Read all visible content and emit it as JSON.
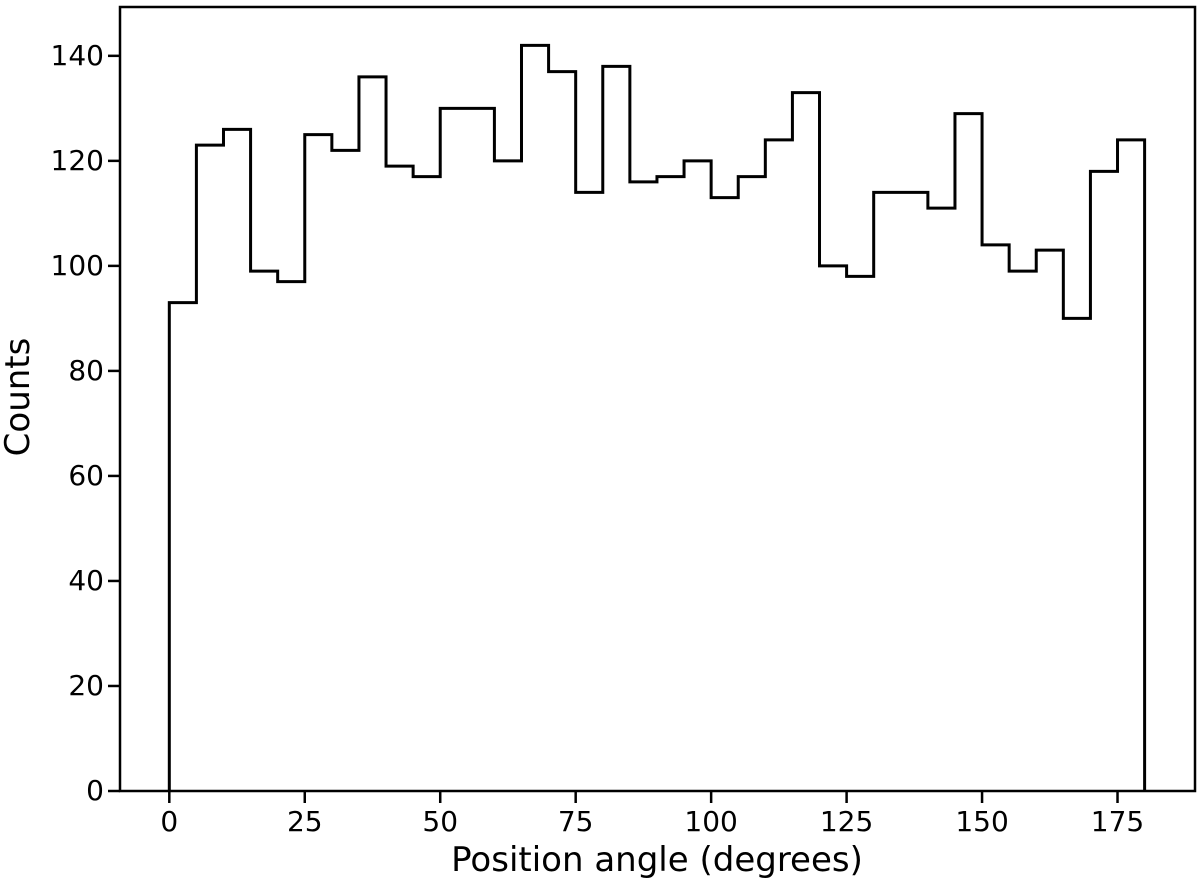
{
  "chart_data": {
    "type": "bar",
    "subtype": "step-histogram",
    "title": "",
    "xlabel": "Position angle (degrees)",
    "ylabel": "Counts",
    "bin_edges": [
      0,
      5,
      10,
      15,
      20,
      25,
      30,
      35,
      40,
      45,
      50,
      55,
      60,
      65,
      70,
      75,
      80,
      85,
      90,
      95,
      100,
      105,
      110,
      115,
      120,
      125,
      130,
      135,
      140,
      145,
      150,
      155,
      160,
      165,
      170,
      175,
      180
    ],
    "values": [
      93,
      123,
      126,
      99,
      97,
      125,
      122,
      136,
      119,
      117,
      130,
      130,
      120,
      142,
      137,
      114,
      138,
      116,
      117,
      120,
      113,
      117,
      124,
      133,
      100,
      98,
      114,
      114,
      111,
      129,
      104,
      99,
      103,
      90,
      118,
      124
    ],
    "x_ticks": [
      0,
      25,
      50,
      75,
      100,
      125,
      150,
      175
    ],
    "x_tick_labels": [
      "0",
      "25",
      "50",
      "75",
      "100",
      "125",
      "150",
      "175"
    ],
    "y_ticks": [
      0,
      20,
      40,
      60,
      80,
      100,
      120,
      140
    ],
    "y_tick_labels": [
      "0",
      "20",
      "40",
      "60",
      "80",
      "100",
      "120",
      "140"
    ],
    "xlim": [
      -9.1,
      189.3
    ],
    "ylim": [
      0,
      149.3
    ],
    "grid": false,
    "legend": null,
    "line_color": "#000000",
    "background_color": "#ffffff"
  }
}
